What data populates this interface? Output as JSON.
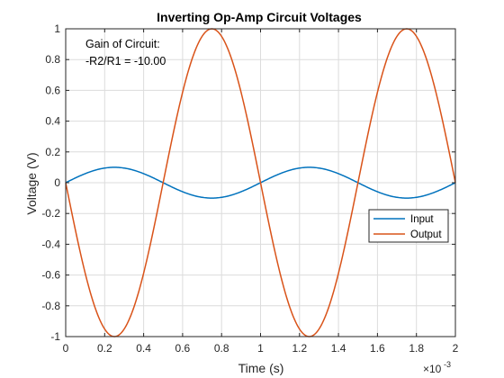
{
  "chart_data": {
    "type": "line",
    "title": "Inverting Op-Amp Circuit Voltages",
    "xlabel": "Time (s)",
    "ylabel": "Voltage (V)",
    "x_exponent_label": "×10",
    "x_exponent_power": "-3",
    "x_scale_factor": 0.001,
    "xlim": [
      0,
      2
    ],
    "ylim": [
      -1,
      1
    ],
    "x_ticks": [
      0,
      0.2,
      0.4,
      0.6,
      0.8,
      1,
      1.2,
      1.4,
      1.6,
      1.8,
      2
    ],
    "x_tick_labels": [
      "0",
      "0.2",
      "0.4",
      "0.6",
      "0.8",
      "1",
      "1.2",
      "1.4",
      "1.6",
      "1.8",
      "2"
    ],
    "y_ticks": [
      1,
      0.8,
      0.6,
      0.4,
      0.2,
      0,
      -0.2,
      -0.4,
      -0.6,
      -0.8,
      -1
    ],
    "y_tick_labels": [
      "1",
      "0.8",
      "0.6",
      "0.4",
      "0.2",
      "0",
      "-0.2",
      "-0.4",
      "-0.6",
      "-0.8",
      "-1"
    ],
    "grid": true,
    "legend_position": "right",
    "x": [
      0,
      0.05,
      0.1,
      0.15,
      0.2,
      0.25,
      0.3,
      0.35,
      0.4,
      0.45,
      0.5,
      0.55,
      0.6,
      0.65,
      0.7,
      0.75,
      0.8,
      0.85,
      0.9,
      0.95,
      1,
      1.05,
      1.1,
      1.15,
      1.2,
      1.25,
      1.3,
      1.35,
      1.4,
      1.45,
      1.5,
      1.55,
      1.6,
      1.65,
      1.7,
      1.75,
      1.8,
      1.85,
      1.9,
      1.95,
      2
    ],
    "series": [
      {
        "name": "Input",
        "color": "#0072bd",
        "values": [
          0,
          0.0309,
          0.0588,
          0.0809,
          0.0951,
          0.1,
          0.0951,
          0.0809,
          0.0588,
          0.0309,
          0,
          -0.0309,
          -0.0588,
          -0.0809,
          -0.0951,
          -0.1,
          -0.0951,
          -0.0809,
          -0.0588,
          -0.0309,
          0,
          0.0309,
          0.0588,
          0.0809,
          0.0951,
          0.1,
          0.0951,
          0.0809,
          0.0588,
          0.0309,
          0,
          -0.0309,
          -0.0588,
          -0.0809,
          -0.0951,
          -0.1,
          -0.0951,
          -0.0809,
          -0.0588,
          -0.0309,
          0
        ]
      },
      {
        "name": "Output",
        "color": "#d95319",
        "values": [
          0,
          -0.309,
          -0.588,
          -0.809,
          -0.951,
          -1,
          -0.951,
          -0.809,
          -0.588,
          -0.309,
          0,
          0.309,
          0.588,
          0.809,
          0.951,
          1,
          0.951,
          0.809,
          0.588,
          0.309,
          0,
          -0.309,
          -0.588,
          -0.809,
          -0.951,
          -1,
          -0.951,
          -0.809,
          -0.588,
          -0.309,
          0,
          0.309,
          0.588,
          0.809,
          0.951,
          1,
          0.951,
          0.809,
          0.588,
          0.309,
          0
        ]
      }
    ],
    "annotations": [
      "Gain of Circuit:",
      "-R2/R1 = -10.00"
    ]
  }
}
